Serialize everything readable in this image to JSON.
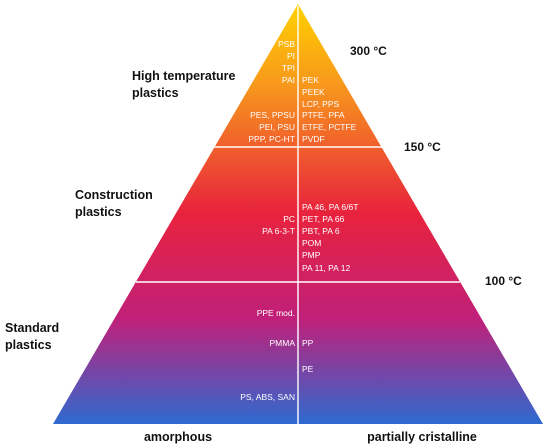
{
  "temperatures": {
    "t300": "300 °C",
    "t150": "150 °C",
    "t100": "100 °C"
  },
  "categories": {
    "high_line1": "High temperature",
    "high_line2": "plastics",
    "construction_line1": "Construction",
    "construction_line2": "plastics",
    "standard_line1": "Standard",
    "standard_line2": "plastics"
  },
  "bottom_labels": {
    "left": "amorphous",
    "right": "partially cristalline"
  },
  "high": {
    "amorphous": [
      "PSB",
      "PI",
      "TPI",
      "PAI",
      "PES, PPSU",
      "PEI, PSU",
      "PPP, PC-HT"
    ],
    "crystalline": [
      "PEK",
      "PEEK",
      "LCP, PPS",
      "PTFE, PFA",
      "ETFE, PCTFE",
      "PVDF"
    ]
  },
  "construction": {
    "amorphous": [
      "PC",
      "PA 6-3-T"
    ],
    "crystalline": [
      "PA 46, PA 6/6T",
      "PET, PA 66",
      "PBT, PA 6",
      "POM",
      "PMP",
      "PA 11, PA 12"
    ]
  },
  "standard": {
    "amorphous": [
      "PPE mod.",
      "PMMA",
      "PS, ABS, SAN"
    ],
    "crystalline": [
      "PP",
      "PE"
    ]
  },
  "colors": {
    "top": "#ffd200",
    "upper": "#f7951d",
    "middle": "#e8223d",
    "lower": "#c0207a",
    "base": "#2e6ad0"
  }
}
